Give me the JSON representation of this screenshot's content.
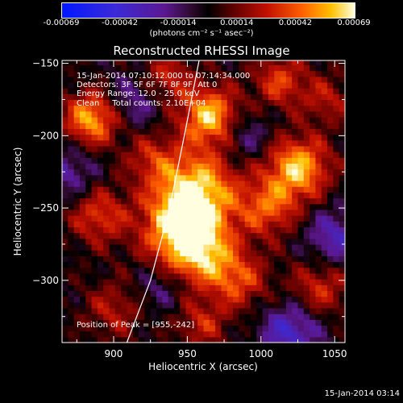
{
  "chart_data": {
    "type": "heatmap",
    "title": "Reconstructed RHESSI Image",
    "xlabel": "Heliocentric X (arcsec)",
    "ylabel": "Heliocentric Y (arcsec)",
    "xlim": [
      865,
      1057
    ],
    "ylim": [
      -343,
      -148
    ],
    "x_ticks": [
      900,
      950,
      1000,
      1050
    ],
    "y_ticks": [
      -150,
      -200,
      -250,
      -300
    ],
    "colorbar": {
      "ticks": [
        "-0.00069",
        "-0.00042",
        "-0.00014",
        "0.00014",
        "0.00042",
        "0.00069"
      ],
      "range": [
        -0.00069,
        0.00069
      ],
      "units": "(photons cm⁻² s⁻¹ asec⁻²)"
    },
    "annotations": [
      "15-Jan-2014 07:10:12.000 to 07:14:34.000",
      "Detectors: 3F 5F 6F 7F 8F 9F, Att 0",
      "Energy Range: 12.0 - 25.0 keV",
      "Clean     Total counts: 2.10E+04"
    ],
    "peak_label": "Position of Peak = [955,-242]",
    "peak": [
      955,
      -242
    ],
    "sources": [
      {
        "x": 955,
        "y": -240,
        "amp": 1.0,
        "r": 20
      },
      {
        "x": 944,
        "y": -268,
        "amp": 0.75,
        "r": 17
      },
      {
        "x": 962,
        "y": -283,
        "amp": 0.6,
        "r": 15
      },
      {
        "x": 1025,
        "y": -222,
        "amp": 0.85,
        "r": 15
      },
      {
        "x": 1005,
        "y": -250,
        "amp": 0.55,
        "r": 14
      },
      {
        "x": 965,
        "y": -186,
        "amp": 0.85,
        "r": 14
      },
      {
        "x": 885,
        "y": -188,
        "amp": 0.8,
        "r": 13
      },
      {
        "x": 1013,
        "y": -162,
        "amp": 0.5,
        "r": 13
      },
      {
        "x": 890,
        "y": -255,
        "amp": 0.5,
        "r": 14
      },
      {
        "x": 935,
        "y": -160,
        "amp": 0.45,
        "r": 12
      },
      {
        "x": 985,
        "y": -300,
        "amp": 0.5,
        "r": 14
      },
      {
        "x": 1040,
        "y": -305,
        "amp": 0.45,
        "r": 14
      },
      {
        "x": 900,
        "y": -320,
        "amp": 0.35,
        "r": 14
      },
      {
        "x": 960,
        "y": -330,
        "amp": 0.4,
        "r": 12
      },
      {
        "x": 925,
        "y": -215,
        "amp": 0.35,
        "r": 12
      },
      {
        "x": 1045,
        "y": -175,
        "amp": 0.35,
        "r": 12
      },
      {
        "x": 1050,
        "y": -270,
        "amp": -0.45,
        "r": 14
      },
      {
        "x": 915,
        "y": -175,
        "amp": -0.35,
        "r": 13
      },
      {
        "x": 1020,
        "y": -335,
        "amp": -0.55,
        "r": 14
      },
      {
        "x": 870,
        "y": -225,
        "amp": -0.35,
        "r": 13
      },
      {
        "x": 990,
        "y": -200,
        "amp": -0.3,
        "r": 12
      },
      {
        "x": 930,
        "y": -305,
        "amp": -0.25,
        "r": 11
      }
    ],
    "limb_curve": [
      [
        909,
        -343
      ],
      [
        925,
        -300
      ],
      [
        938,
        -250
      ],
      [
        948,
        -200
      ],
      [
        958,
        -148
      ]
    ]
  },
  "footer": {
    "timestamp": "15-Jan-2014 03:14"
  }
}
